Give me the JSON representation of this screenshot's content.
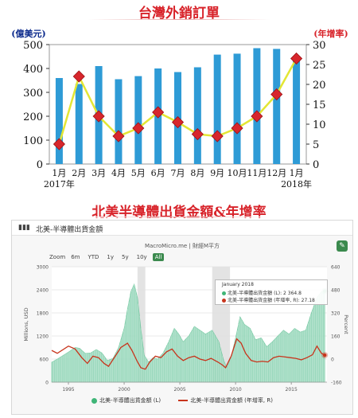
{
  "colors": {
    "title_red": "#d8232a",
    "bar_blue": "#2e9bd6",
    "line_yellow": "#e3e634",
    "marker_red": "#d7262c",
    "axis_text": "#0b2a8c",
    "area_green": "#8fd4b5",
    "line_red": "#c8341c",
    "accent_green": "#3b8a4e"
  },
  "title1": "台灣外銷訂單",
  "title2": "北美半導體出貨金額&年增率",
  "chart_data": [
    {
      "type": "bar",
      "title": "台灣外銷訂單",
      "ylabel_left": "(億美元)",
      "ylabel_right": "(年增率)",
      "categories": [
        "1月",
        "2月",
        "3月",
        "4月",
        "5月",
        "6月",
        "7月",
        "8月",
        "9月",
        "10月",
        "11月",
        "12月",
        "1月"
      ],
      "year_labels": [
        "2017年",
        "2018年"
      ],
      "ylim_left": [
        0,
        500
      ],
      "yticks_left": [
        "0",
        "100",
        "200",
        "300",
        "400",
        "500"
      ],
      "ylim_right": [
        0,
        30
      ],
      "yticks_right": [
        "0",
        "5",
        "10",
        "15",
        "20",
        "25",
        "30"
      ],
      "series": [
        {
          "axis": "left",
          "kind": "bar",
          "values": [
            360,
            335,
            410,
            355,
            368,
            400,
            385,
            405,
            458,
            462,
            485,
            482,
            445
          ]
        },
        {
          "axis": "right",
          "kind": "line",
          "values": [
            5.0,
            22.0,
            12.0,
            7.0,
            9.0,
            13.0,
            10.5,
            7.5,
            7.0,
            9.0,
            12.0,
            17.5,
            26.5
          ]
        }
      ]
    },
    {
      "type": "area",
      "panel_title": "北美-半導體出貨金額",
      "brand": "MacroMicro.me | 財經M平方",
      "ylabel_left": "Millions, USD",
      "ylabel_right": "Percent",
      "ylim_left": [
        0,
        3000
      ],
      "yticks_left": [
        "0",
        "600",
        "1200",
        "1800",
        "2400",
        "3000"
      ],
      "ylim_right": [
        -160,
        640
      ],
      "yticks_right": [
        "-160",
        "0",
        "160",
        "320",
        "480",
        "640"
      ],
      "x_range": [
        1993.5,
        2018.2
      ],
      "xticks": [
        "1995",
        "2000",
        "2005",
        "2010",
        "2015"
      ],
      "shaded_ranges": [
        [
          2001.2,
          2001.9
        ],
        [
          2007.9,
          2009.5
        ]
      ],
      "series": [
        {
          "name": "北美-半導體出貨金額 (L)",
          "kind": "area",
          "points": [
            [
              1993.5,
              520
            ],
            [
              1994,
              600
            ],
            [
              1995,
              780
            ],
            [
              1995.6,
              900
            ],
            [
              1996,
              880
            ],
            [
              1996.5,
              750
            ],
            [
              1997,
              760
            ],
            [
              1997.5,
              850
            ],
            [
              1998,
              760
            ],
            [
              1998.5,
              560
            ],
            [
              1999,
              620
            ],
            [
              1999.5,
              900
            ],
            [
              2000,
              1400
            ],
            [
              2000.3,
              1900
            ],
            [
              2000.6,
              2350
            ],
            [
              2000.9,
              2550
            ],
            [
              2001.2,
              2200
            ],
            [
              2001.5,
              1400
            ],
            [
              2001.8,
              700
            ],
            [
              2002.2,
              520
            ],
            [
              2002.6,
              640
            ],
            [
              2003,
              600
            ],
            [
              2003.5,
              760
            ],
            [
              2004,
              1050
            ],
            [
              2004.5,
              1400
            ],
            [
              2004.9,
              1250
            ],
            [
              2005.3,
              1050
            ],
            [
              2005.8,
              1200
            ],
            [
              2006.3,
              1450
            ],
            [
              2006.8,
              1350
            ],
            [
              2007.3,
              1250
            ],
            [
              2007.9,
              1350
            ],
            [
              2008.5,
              1050
            ],
            [
              2008.9,
              600
            ],
            [
              2009.2,
              380
            ],
            [
              2009.6,
              650
            ],
            [
              2010,
              1150
            ],
            [
              2010.4,
              1700
            ],
            [
              2010.8,
              1500
            ],
            [
              2011.3,
              1400
            ],
            [
              2011.8,
              1100
            ],
            [
              2012.3,
              1150
            ],
            [
              2012.8,
              920
            ],
            [
              2013.3,
              1050
            ],
            [
              2013.8,
              1200
            ],
            [
              2014.3,
              1350
            ],
            [
              2014.8,
              1250
            ],
            [
              2015.3,
              1400
            ],
            [
              2015.8,
              1300
            ],
            [
              2016.3,
              1350
            ],
            [
              2016.8,
              1800
            ],
            [
              2017.3,
              2200
            ],
            [
              2017.7,
              2350
            ],
            [
              2018.0,
              2364.8
            ]
          ]
        },
        {
          "name": "北美-半導體出貨金額 (年增率, R)",
          "kind": "line",
          "points": [
            [
              1993.5,
              60
            ],
            [
              1994,
              40
            ],
            [
              1995,
              90
            ],
            [
              1995.6,
              70
            ],
            [
              1996.2,
              10
            ],
            [
              1996.7,
              -30
            ],
            [
              1997.2,
              20
            ],
            [
              1997.7,
              10
            ],
            [
              1998.2,
              -30
            ],
            [
              1998.6,
              -50
            ],
            [
              1999.2,
              20
            ],
            [
              1999.7,
              80
            ],
            [
              2000.3,
              110
            ],
            [
              2000.7,
              60
            ],
            [
              2001.2,
              -20
            ],
            [
              2001.5,
              -60
            ],
            [
              2001.9,
              -70
            ],
            [
              2002.3,
              -20
            ],
            [
              2002.8,
              20
            ],
            [
              2003.3,
              10
            ],
            [
              2003.8,
              50
            ],
            [
              2004.3,
              70
            ],
            [
              2004.8,
              20
            ],
            [
              2005.3,
              -10
            ],
            [
              2005.8,
              10
            ],
            [
              2006.3,
              20
            ],
            [
              2006.8,
              0
            ],
            [
              2007.3,
              -10
            ],
            [
              2007.8,
              5
            ],
            [
              2008.4,
              -20
            ],
            [
              2008.8,
              -40
            ],
            [
              2009.1,
              -60
            ],
            [
              2009.6,
              20
            ],
            [
              2010.1,
              140
            ],
            [
              2010.5,
              110
            ],
            [
              2010.9,
              40
            ],
            [
              2011.4,
              -10
            ],
            [
              2011.9,
              -20
            ],
            [
              2012.4,
              -15
            ],
            [
              2012.9,
              -20
            ],
            [
              2013.4,
              10
            ],
            [
              2013.9,
              20
            ],
            [
              2014.4,
              15
            ],
            [
              2014.9,
              10
            ],
            [
              2015.4,
              5
            ],
            [
              2015.9,
              -5
            ],
            [
              2016.4,
              10
            ],
            [
              2016.9,
              30
            ],
            [
              2017.3,
              90
            ],
            [
              2017.7,
              40
            ],
            [
              2018.0,
              27.18
            ]
          ]
        }
      ],
      "tooltip": {
        "date": "January 2018",
        "line1": "北美-半導體出貨金額 (L): 2 364.8",
        "line2": "北美-半導體出貨金額 (年增率, R): 27.18"
      },
      "zoom": {
        "label": "Zoom",
        "options": [
          "6m",
          "YTD",
          "1y",
          "5y",
          "10y",
          "All"
        ],
        "active": "All"
      },
      "legend": [
        "北美-半導體出貨金額 (L)",
        "北美-半導體出貨金額 (年增率, R)"
      ]
    }
  ]
}
